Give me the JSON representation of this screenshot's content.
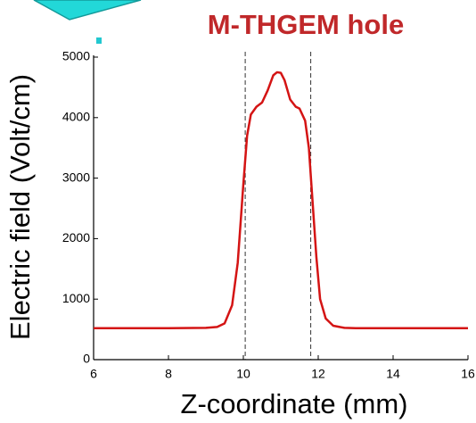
{
  "chart_data": {
    "type": "line",
    "title": "M-THGEM hole",
    "x_label": "Z-coordinate (mm)",
    "y_label": "Electric field (Volt/cm)",
    "x": [
      6,
      7,
      8,
      9,
      9.3,
      9.5,
      9.7,
      9.85,
      10,
      10.1,
      10.2,
      10.35,
      10.5,
      10.65,
      10.8,
      10.9,
      11,
      11.1,
      11.25,
      11.4,
      11.5,
      11.65,
      11.75,
      11.85,
      11.95,
      12.05,
      12.2,
      12.4,
      12.7,
      13,
      14,
      15,
      16
    ],
    "series": [
      {
        "color": "#d41414",
        "values": [
          520,
          520,
          520,
          525,
          540,
          600,
          900,
          1600,
          2900,
          3700,
          4050,
          4180,
          4250,
          4450,
          4700,
          4750,
          4740,
          4620,
          4300,
          4180,
          4150,
          3950,
          3500,
          2600,
          1700,
          1000,
          680,
          560,
          525,
          520,
          520,
          520,
          520
        ]
      }
    ],
    "vlines": [
      10.05,
      11.8
    ],
    "xlim": [
      6,
      16
    ],
    "xticks": [
      6,
      8,
      10,
      12,
      14,
      16
    ],
    "ylim": [
      0,
      5000
    ],
    "yticks": [
      0,
      1000,
      2000,
      3000,
      4000,
      5000
    ],
    "title_color": "#c0282a"
  }
}
